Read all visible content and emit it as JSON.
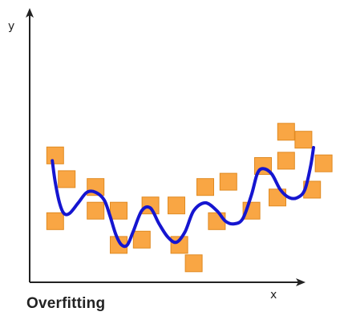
{
  "caption": "Overfitting",
  "axes": {
    "x_label": "x",
    "y_label": "y"
  },
  "colors": {
    "point_fill": "#F9A644",
    "point_stroke": "#E08A22",
    "curve": "#1515D0",
    "axis": "#222222"
  },
  "chart_data": {
    "type": "scatter",
    "title": "",
    "xlabel": "x",
    "ylabel": "y",
    "xlim": [
      0,
      100
    ],
    "ylim": [
      0,
      100
    ],
    "grid": false,
    "points": [
      {
        "x": 8,
        "y": 47
      },
      {
        "x": 12,
        "y": 38
      },
      {
        "x": 8,
        "y": 22
      },
      {
        "x": 22,
        "y": 35
      },
      {
        "x": 22,
        "y": 26
      },
      {
        "x": 30,
        "y": 26
      },
      {
        "x": 30,
        "y": 13
      },
      {
        "x": 38,
        "y": 15
      },
      {
        "x": 41,
        "y": 28
      },
      {
        "x": 50,
        "y": 28
      },
      {
        "x": 51,
        "y": 13
      },
      {
        "x": 56,
        "y": 6
      },
      {
        "x": 60,
        "y": 35
      },
      {
        "x": 64,
        "y": 22
      },
      {
        "x": 68,
        "y": 37
      },
      {
        "x": 76,
        "y": 26
      },
      {
        "x": 80,
        "y": 43
      },
      {
        "x": 85,
        "y": 31
      },
      {
        "x": 88,
        "y": 45
      },
      {
        "x": 88,
        "y": 56
      },
      {
        "x": 94,
        "y": 53
      },
      {
        "x": 97,
        "y": 34
      },
      {
        "x": 101,
        "y": 44
      }
    ],
    "curve": [
      {
        "x": 7,
        "y": 45
      },
      {
        "x": 8,
        "y": 37
      },
      {
        "x": 9.5,
        "y": 29
      },
      {
        "x": 11,
        "y": 25
      },
      {
        "x": 13,
        "y": 25
      },
      {
        "x": 16,
        "y": 29
      },
      {
        "x": 19,
        "y": 33
      },
      {
        "x": 22,
        "y": 33
      },
      {
        "x": 25,
        "y": 30
      },
      {
        "x": 27,
        "y": 24
      },
      {
        "x": 29,
        "y": 17
      },
      {
        "x": 31,
        "y": 13
      },
      {
        "x": 33,
        "y": 13
      },
      {
        "x": 35,
        "y": 18
      },
      {
        "x": 38,
        "y": 26
      },
      {
        "x": 41,
        "y": 27
      },
      {
        "x": 44,
        "y": 21
      },
      {
        "x": 47,
        "y": 16
      },
      {
        "x": 50,
        "y": 14
      },
      {
        "x": 53,
        "y": 18
      },
      {
        "x": 56,
        "y": 26
      },
      {
        "x": 60,
        "y": 29
      },
      {
        "x": 64,
        "y": 26
      },
      {
        "x": 67,
        "y": 22
      },
      {
        "x": 70,
        "y": 21
      },
      {
        "x": 73,
        "y": 23
      },
      {
        "x": 76,
        "y": 32
      },
      {
        "x": 78,
        "y": 40
      },
      {
        "x": 80,
        "y": 42
      },
      {
        "x": 83,
        "y": 40
      },
      {
        "x": 86,
        "y": 34
      },
      {
        "x": 89,
        "y": 31
      },
      {
        "x": 92,
        "y": 31
      },
      {
        "x": 94.5,
        "y": 34
      },
      {
        "x": 96.5,
        "y": 43
      },
      {
        "x": 97.5,
        "y": 50
      }
    ]
  }
}
